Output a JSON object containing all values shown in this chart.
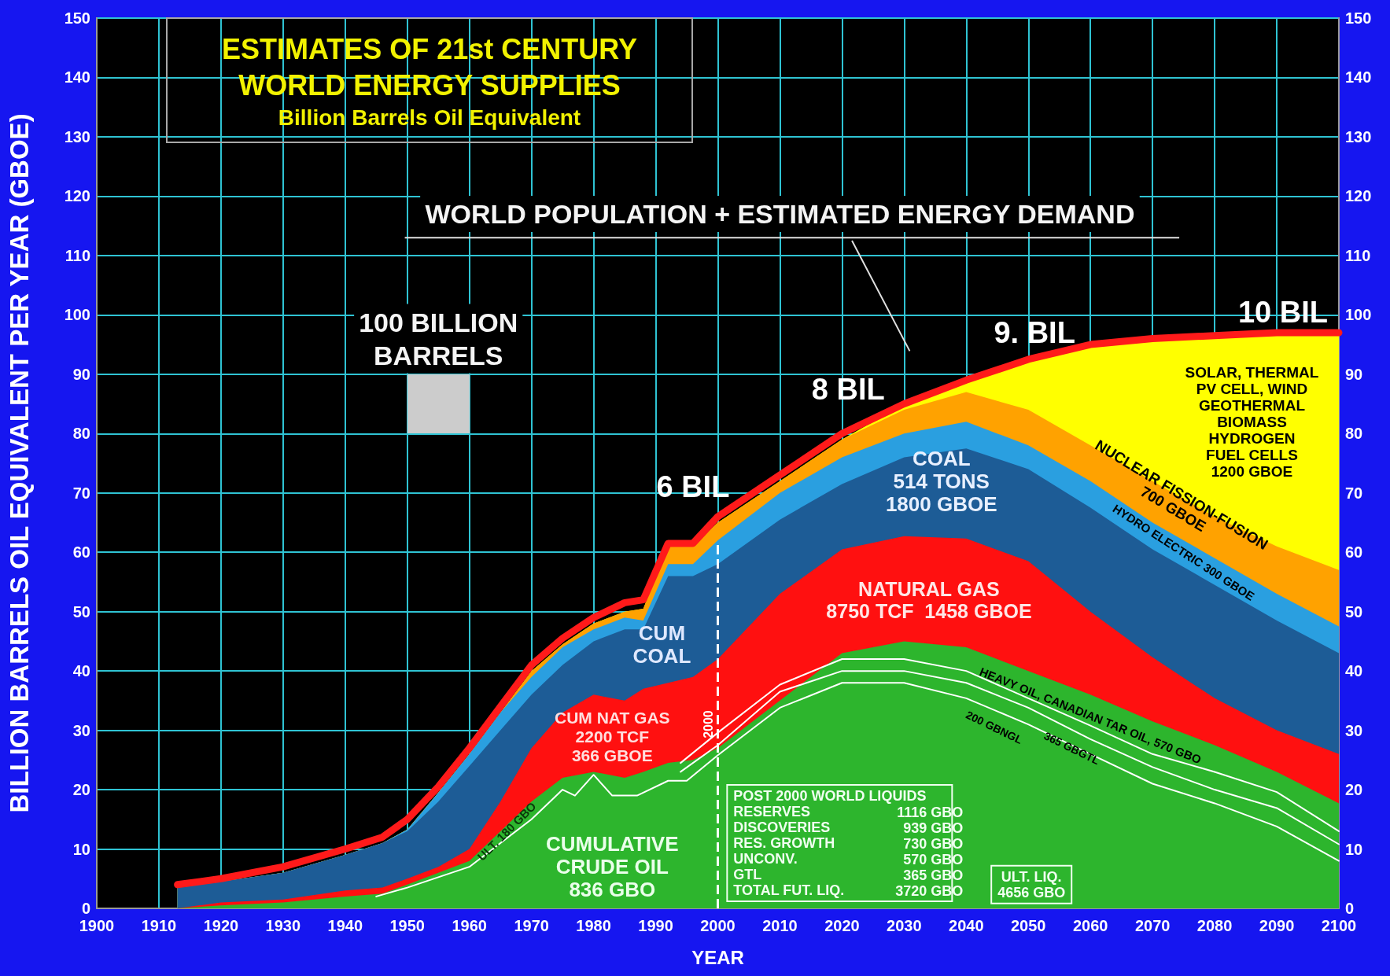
{
  "chart_data": {
    "type": "area",
    "title": "ESTIMATES OF 21st CENTURY\nWORLD ENERGY SUPPLIES",
    "subtitle": "Billion Barrels Oil Equivalent",
    "xlabel": "YEAR",
    "ylabel": "BILLION BARRELS OIL EQUIVALENT PER YEAR (GBOE)",
    "x": [
      1913,
      1920,
      1930,
      1940,
      1946,
      1950,
      1955,
      1960,
      1965,
      1970,
      1975,
      1980,
      1985,
      1988,
      1992,
      1996,
      2000,
      2010,
      2020,
      2030,
      2040,
      2050,
      2060,
      2070,
      2080,
      2090,
      2100
    ],
    "series": [
      {
        "color": "#2db52d",
        "values": [
          0,
          0.5,
          1,
          2,
          2.5,
          4,
          6,
          8,
          13,
          18,
          22,
          23,
          22,
          23,
          24.5,
          25,
          27,
          35,
          43,
          45,
          44,
          40,
          36,
          31.5,
          27.5,
          23,
          17.7
        ]
      },
      {
        "color": "#ff1010",
        "values": [
          0,
          0.5,
          0.5,
          1,
          1,
          1,
          1,
          2,
          5,
          9,
          11,
          13,
          13,
          14,
          13.5,
          14,
          15,
          18,
          17.5,
          17.7,
          18.3,
          18.5,
          14,
          10.8,
          7.9,
          7,
          8.3
        ]
      },
      {
        "color": "#1d5c96",
        "values": [
          3.5,
          3.5,
          4.5,
          6,
          7.5,
          8,
          11,
          14,
          12,
          9,
          8,
          9,
          12,
          10,
          18,
          17,
          16,
          12.5,
          11,
          13.3,
          15.2,
          15.5,
          17.5,
          18.2,
          19.1,
          18.5,
          17
        ]
      },
      {
        "color": "#2a9fe0",
        "values": [
          0,
          0,
          0,
          0,
          0,
          0.3,
          1.5,
          2,
          3,
          3,
          3,
          2,
          2,
          1.5,
          2,
          2,
          4,
          4.5,
          4.5,
          4,
          4.5,
          4,
          4.5,
          4.5,
          4.5,
          4.5,
          4.5
        ]
      },
      {
        "color": "#ffa200",
        "values": [
          0,
          0,
          0,
          0,
          0,
          0,
          0,
          0,
          0,
          1,
          0.5,
          1,
          1,
          2,
          3,
          3,
          3,
          2,
          3,
          4,
          5,
          6,
          6,
          7,
          7,
          8,
          9.5
        ]
      },
      {
        "color": "#ffff00",
        "values": [
          0,
          0,
          0,
          0,
          0,
          0,
          0,
          0,
          0,
          0,
          0,
          0,
          0,
          0,
          0,
          0,
          0,
          0,
          0,
          1,
          2,
          8.5,
          17,
          24,
          30.5,
          36,
          40
        ]
      },
      {
        "type": "line",
        "color": "#ff1a1a",
        "values": [
          4,
          5,
          7,
          10,
          12,
          15,
          20.5,
          27,
          34,
          41,
          45.5,
          49,
          51.5,
          52,
          61.5,
          61.5,
          66,
          73,
          80,
          85,
          89,
          92.5,
          95,
          96,
          96.5,
          97,
          97
        ]
      },
      {
        "type": "line",
        "color": "#ffffff",
        "x": [
          1945,
          1950,
          1960,
          1970,
          1975,
          1977,
          1980,
          1983,
          1987,
          1992,
          1995,
          2000,
          2010,
          2020,
          2030,
          2040,
          2050,
          2060,
          2070,
          2080,
          2090,
          2100
        ],
        "values": [
          2,
          3.5,
          7,
          15,
          20,
          19,
          22.5,
          19,
          19,
          21.5,
          21.5,
          25.8,
          33.8,
          38,
          38,
          35.4,
          31,
          26,
          21,
          17.7,
          13.8,
          8
        ]
      },
      {
        "type": "line",
        "color": "#ffffff",
        "x": [
          1994,
          2000,
          2010,
          2020,
          2030,
          2040,
          2050,
          2060,
          2070,
          2080,
          2090,
          2100
        ],
        "values": [
          23,
          27.5,
          36.5,
          40,
          40,
          38,
          33.8,
          28.5,
          23.8,
          20,
          16.9,
          10.8
        ]
      },
      {
        "type": "line",
        "color": "#ffffff",
        "x": [
          1994,
          2000,
          2010,
          2020,
          2030,
          2040,
          2050,
          2060,
          2070,
          2080,
          2090,
          2100
        ],
        "values": [
          24.5,
          29.6,
          37.7,
          42,
          42,
          40,
          35.4,
          30.8,
          26,
          23,
          19.6,
          13
        ]
      }
    ],
    "stacked": true,
    "marker": "none",
    "grid": true,
    "xlim": [
      1900,
      2100
    ],
    "xticks": [
      1900,
      1910,
      1920,
      1930,
      1940,
      1950,
      1960,
      1970,
      1980,
      1990,
      2000,
      2010,
      2020,
      2030,
      2040,
      2050,
      2060,
      2070,
      2080,
      2090,
      2100
    ],
    "ylim": [
      0,
      150
    ],
    "yticks": [
      0,
      10,
      20,
      30,
      40,
      50,
      60,
      70,
      80,
      90,
      100,
      110,
      120,
      130,
      140,
      150
    ],
    "y2lim": [
      0,
      150
    ],
    "y2ticks": [
      0,
      10,
      20,
      30,
      40,
      50,
      60,
      70,
      80,
      90,
      100,
      110,
      120,
      130,
      140,
      150
    ],
    "ref_lines": [
      {
        "axis": "x",
        "value": 2000,
        "label": "2000",
        "color": "#ffffff",
        "line_style": "dashed"
      }
    ],
    "annotations": [
      "WORLD POPULATION + ESTIMATED ENERGY DEMAND",
      "100 BILLION\nBARRELS",
      "6 BIL",
      "8 BIL",
      "9. BIL",
      "10 BIL",
      "CUMULATIVE\nCRUDE OIL\n836 GBO",
      "ULT. 180 GBO",
      "CUM NAT GAS\n2200 TCF\n366 GBOE",
      "CUM\nCOAL",
      "COAL\n514 TONS\n1800 GBOE",
      "NATURAL GAS\n8750 TCF  1458 GBOE",
      "HEAVY OIL, CANADIAN TAR OIL, 570 GBO",
      "200 GBNGL",
      "365 GBGTL",
      "HYDRO ELECTRIC 300 GBOE",
      "NUCLEAR FISSION-FUSION\n700 GBOE",
      "SOLAR, THERMAL\nPV CELL, WIND\nGEOTHERMAL\nBIOMASS\nHYDROGEN\nFUEL CELLS\n1200 GBOE",
      "POST 2000 WORLD LIQUIDS\nRESERVES\nDISCOVERIES\nRES. GROWTH\nUNCONV.\nGTL\nTOTAL FUT. LIQ.",
      "1116 GBO\n939 GBO\n730 GBO\n570 GBO\n365 GBO\n3720 GBO",
      "ULT. LIQ.\n4656 GBO"
    ]
  }
}
